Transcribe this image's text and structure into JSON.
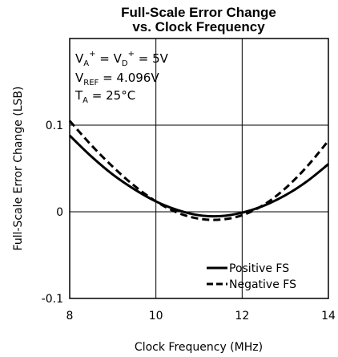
{
  "chart_data": {
    "type": "line",
    "title": [
      "Full-Scale Error Change",
      "vs. Clock Frequency"
    ],
    "xlabel": "Clock Frequency (MHz)",
    "ylabel": "Full-Scale Error Change (LSB)",
    "annotations": [
      [
        "V",
        "A",
        "+",
        " = V",
        "D",
        "+",
        " = 5V"
      ],
      [
        "V",
        "REF",
        " = 4.096V"
      ],
      [
        "T",
        "A",
        " = 25°C"
      ]
    ],
    "x": [
      8,
      8.5,
      9,
      9.5,
      10,
      10.5,
      11,
      11.5,
      12,
      12.5,
      13,
      13.5,
      14
    ],
    "series": [
      {
        "name": "Positive FS",
        "color": "#000000",
        "dash": "solid",
        "values": [
          0.088,
          0.064,
          0.043,
          0.026,
          0.012,
          0.002,
          -0.004,
          -0.005,
          -0.001,
          0.007,
          0.019,
          0.035,
          0.055
        ]
      },
      {
        "name": "Negative FS",
        "color": "#000000",
        "dash": "dashed",
        "values": [
          0.105,
          0.077,
          0.052,
          0.03,
          0.012,
          -0.001,
          -0.008,
          -0.009,
          -0.004,
          0.008,
          0.027,
          0.052,
          0.082
        ]
      }
    ],
    "xlim": [
      8,
      14
    ],
    "xticks": [
      8,
      10,
      12,
      14
    ],
    "ylim": [
      -0.1,
      0.2
    ],
    "yticks": [
      -0.1,
      0,
      0.1
    ],
    "grid": true,
    "legend": "lower right"
  }
}
